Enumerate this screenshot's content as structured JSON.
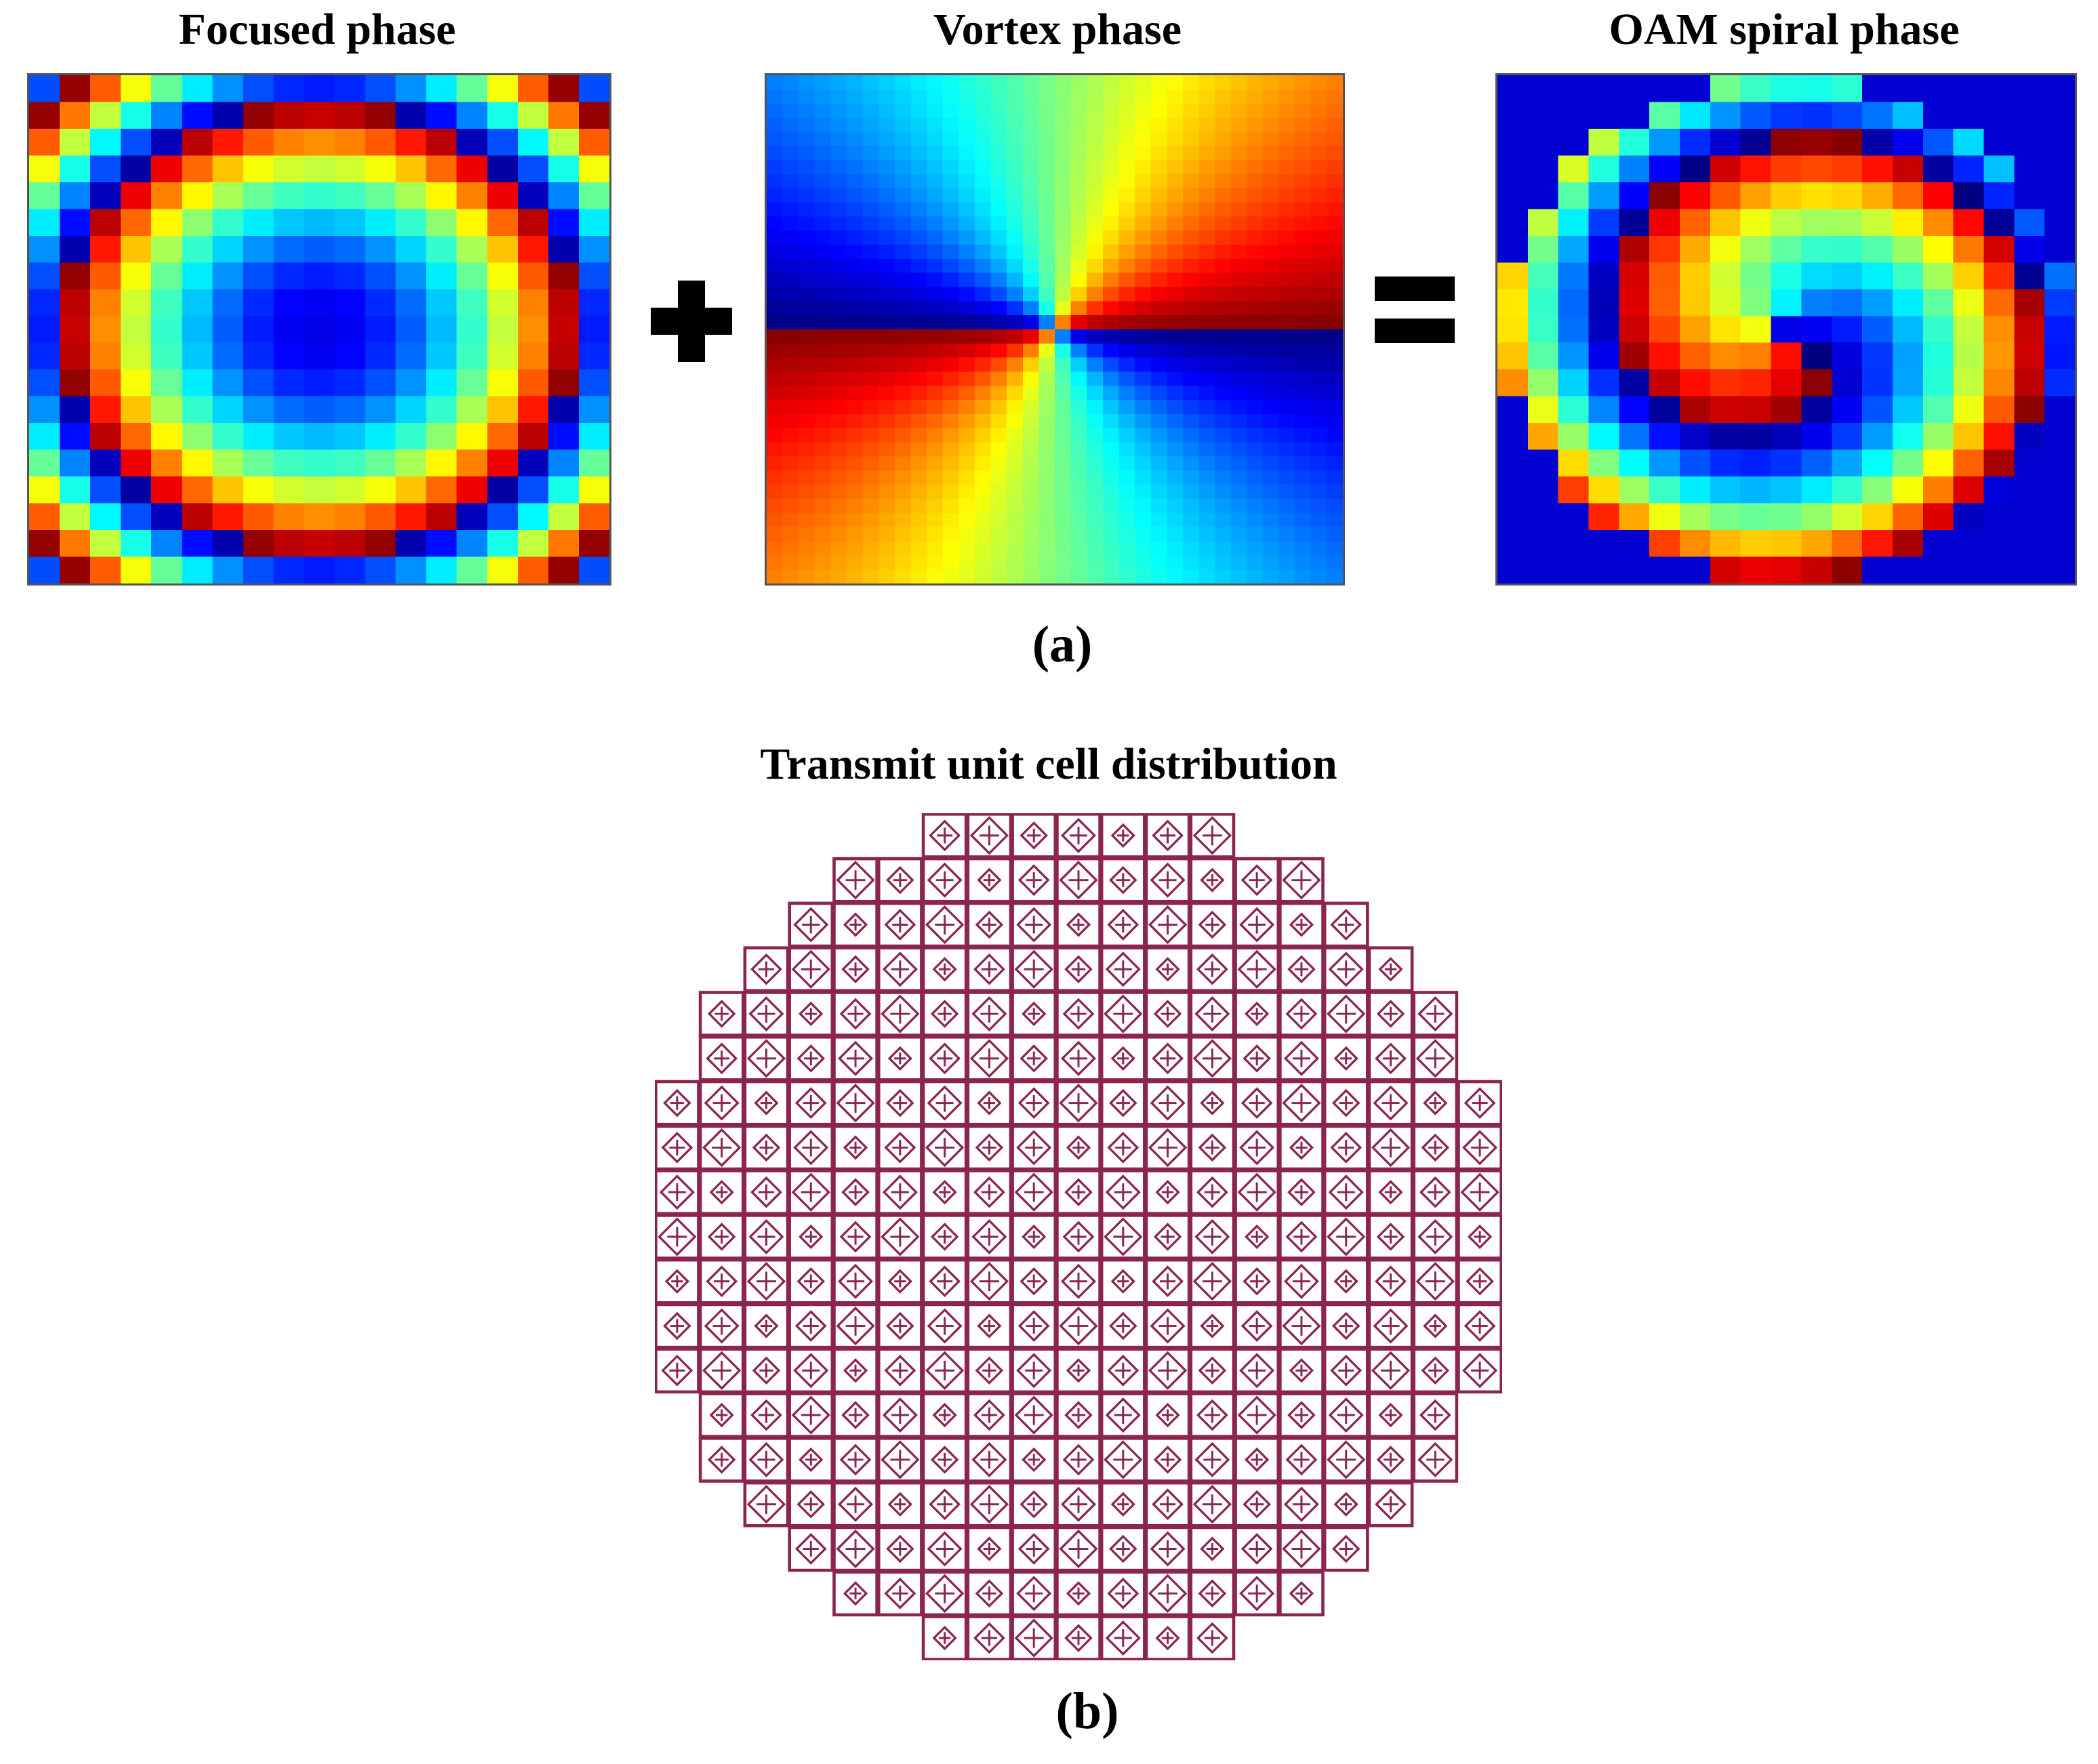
{
  "panel_a": {
    "label": "(a)",
    "focused_title": "Focused phase",
    "vortex_title": "Vortex phase",
    "oam_title": "OAM spiral phase",
    "operators": {
      "plus": "+",
      "equals": "="
    },
    "focused_grid_size": 19,
    "vortex_grid_size": 36,
    "oam_grid_size": 19,
    "colormap": "jet"
  },
  "panel_b": {
    "label": "(b)",
    "title": "Transmit unit cell distribution",
    "grid_size": 19,
    "cell_color": "#8b2550"
  }
}
